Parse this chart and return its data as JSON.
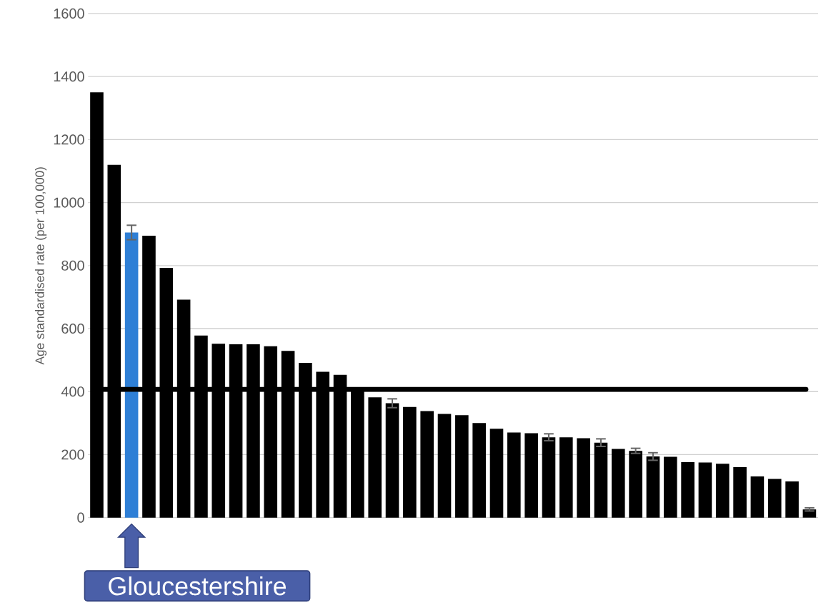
{
  "chart_data": {
    "type": "bar",
    "ylabel": "Age standardised rate (per 100,000)",
    "categories": [
      null,
      null,
      null,
      null,
      null,
      null,
      null,
      null,
      null,
      null,
      null,
      null,
      null,
      null,
      null,
      null,
      null,
      null,
      null,
      null,
      null,
      null,
      null,
      null,
      null,
      null,
      null,
      null,
      null,
      null,
      null,
      null,
      null,
      null,
      null,
      null,
      null,
      null,
      null,
      null,
      null,
      null
    ],
    "values": [
      1350,
      1120,
      905,
      895,
      793,
      692,
      578,
      552,
      550,
      550,
      544,
      529,
      491,
      463,
      453,
      405,
      382,
      363,
      351,
      338,
      329,
      325,
      300,
      282,
      270,
      268,
      255,
      255,
      252,
      238,
      218,
      212,
      194,
      193,
      176,
      175,
      171,
      160,
      131,
      123,
      115,
      26
    ],
    "errors": [
      null,
      null,
      23,
      null,
      null,
      null,
      null,
      null,
      null,
      null,
      null,
      null,
      null,
      null,
      null,
      null,
      null,
      14,
      null,
      null,
      null,
      null,
      null,
      null,
      null,
      null,
      11,
      null,
      null,
      12,
      null,
      8,
      12,
      null,
      null,
      null,
      null,
      null,
      null,
      null,
      null,
      5
    ],
    "colors": [
      "#000000",
      "#000000",
      "#2e7fd6",
      "#000000",
      "#000000",
      "#000000",
      "#000000",
      "#000000",
      "#000000",
      "#000000",
      "#000000",
      "#000000",
      "#000000",
      "#000000",
      "#000000",
      "#000000",
      "#000000",
      "#000000",
      "#000000",
      "#000000",
      "#000000",
      "#000000",
      "#000000",
      "#000000",
      "#000000",
      "#000000",
      "#000000",
      "#000000",
      "#000000",
      "#000000",
      "#000000",
      "#000000",
      "#000000",
      "#000000",
      "#000000",
      "#000000",
      "#000000",
      "#000000",
      "#000000",
      "#000000",
      "#000000",
      "#000000"
    ],
    "ylim": [
      0,
      1600
    ],
    "yticks": [
      0,
      200,
      400,
      600,
      800,
      1000,
      1200,
      1400,
      1600
    ],
    "grid": "y",
    "tick_labels": "y",
    "ref_lines": [
      {
        "axis": "y",
        "value": 407,
        "color": "#000000"
      }
    ],
    "annotations": [
      "Gloucestershire"
    ]
  }
}
